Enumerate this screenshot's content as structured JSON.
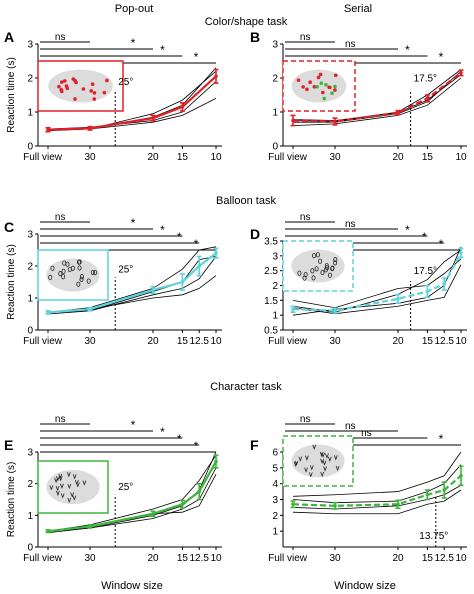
{
  "headers": {
    "col_left": "Pop-out",
    "col_right": "Serial",
    "row1": "Color/shape task",
    "row2": "Balloon task",
    "row3": "Character task"
  },
  "ylabel": "Reaction time (s)",
  "xlabel": "Window size",
  "colors": {
    "red": "#e32028",
    "cyan": "#5cd3dd",
    "green": "#3db53d",
    "ind": "#000000"
  },
  "chart_data": [
    {
      "panel": "A",
      "type": "line",
      "task": "Color/shape",
      "condition": "Pop-out",
      "x_tick_labels": [
        "Full view",
        "30",
        "20",
        "15",
        "10"
      ],
      "x_positions": [
        0,
        1,
        2.5,
        3.2,
        4
      ],
      "ylim": [
        0,
        3
      ],
      "y_ticks": [
        0,
        1,
        2,
        3
      ],
      "mean": [
        0.48,
        0.52,
        0.82,
        1.15,
        2.05
      ],
      "err": [
        0.06,
        0.05,
        0.08,
        0.12,
        0.2
      ],
      "individual": [
        [
          0.45,
          0.5,
          0.95,
          1.35,
          2.2
        ],
        [
          0.5,
          0.55,
          0.75,
          1.0,
          1.9
        ],
        [
          0.46,
          0.5,
          0.7,
          0.9,
          1.4
        ],
        [
          0.5,
          0.52,
          0.85,
          1.2,
          2.3
        ]
      ],
      "dashed": false,
      "color_key": "red",
      "icon": "dots",
      "threshold": {
        "label": "25°",
        "x": 1.6
      },
      "sig_bars": [
        {
          "label": "ns",
          "end": 1
        },
        {
          "label": "*",
          "end": 2.5
        },
        {
          "label": "*",
          "end": 3.2
        },
        {
          "label": "*",
          "end": 4
        }
      ]
    },
    {
      "panel": "B",
      "type": "line",
      "task": "Color/shape",
      "condition": "Serial",
      "x_tick_labels": [
        "Full view",
        "30",
        "20",
        "15",
        "10"
      ],
      "x_positions": [
        0,
        1,
        2.5,
        3.2,
        4
      ],
      "ylim": [
        0,
        3
      ],
      "y_ticks": [
        0,
        1,
        2,
        3
      ],
      "mean": [
        0.75,
        0.72,
        0.98,
        1.4,
        2.15
      ],
      "err": [
        0.15,
        0.1,
        0.06,
        0.1,
        0.08
      ],
      "individual": [
        [
          0.7,
          0.7,
          0.95,
          1.3,
          2.2
        ],
        [
          0.75,
          0.72,
          1.0,
          1.5,
          2.25
        ],
        [
          0.78,
          0.75,
          0.98,
          1.35,
          2.1
        ],
        [
          0.6,
          0.65,
          0.9,
          1.2,
          2.0
        ]
      ],
      "dashed": true,
      "color_key": "red",
      "icon": "dots_mixed",
      "threshold": {
        "label": "17.5°",
        "x": 2.8
      },
      "sig_bars": [
        {
          "label": "ns",
          "end": 1
        },
        {
          "label": "ns",
          "end": 2.5
        },
        {
          "label": "*",
          "end": 3.2
        },
        {
          "label": "*",
          "end": 4
        }
      ]
    },
    {
      "panel": "C",
      "type": "line",
      "task": "Balloon",
      "condition": "Pop-out",
      "x_tick_labels": [
        "Full view",
        "30",
        "20",
        "15",
        "12.5",
        "10"
      ],
      "x_positions": [
        0,
        1,
        2.5,
        3.2,
        3.6,
        4
      ],
      "ylim": [
        0,
        3
      ],
      "y_ticks": [
        0,
        1,
        2,
        3
      ],
      "mean": [
        0.55,
        0.65,
        1.25,
        1.5,
        2.0,
        2.4
      ],
      "err": [
        0.05,
        0.05,
        0.1,
        0.25,
        0.3,
        0.15
      ],
      "individual": [
        [
          0.55,
          0.7,
          1.3,
          1.9,
          2.5,
          2.6
        ],
        [
          0.55,
          0.6,
          1.1,
          1.3,
          1.6,
          2.3
        ],
        [
          0.5,
          0.6,
          1.2,
          1.5,
          2.2,
          2.3
        ],
        [
          0.55,
          0.65,
          1.0,
          1.1,
          1.3,
          1.7
        ]
      ],
      "dashed": false,
      "color_key": "cyan",
      "icon": "balloons",
      "threshold": {
        "label": "25°",
        "x": 1.6
      },
      "sig_bars": [
        {
          "label": "ns",
          "end": 1
        },
        {
          "label": "*",
          "end": 2.5
        },
        {
          "label": "*",
          "end": 3.2
        },
        {
          "label": "*",
          "end": 3.6
        },
        {
          "label": "*",
          "end": 4
        }
      ]
    },
    {
      "panel": "D",
      "type": "line",
      "task": "Balloon",
      "condition": "Serial",
      "x_tick_labels": [
        "Full view",
        "30",
        "20",
        "15",
        "12.5",
        "10"
      ],
      "x_positions": [
        0,
        1,
        2.5,
        3.2,
        3.6,
        4
      ],
      "ylim": [
        0.5,
        3.5
      ],
      "y_ticks": [
        0.5,
        1,
        1.5,
        2,
        2.5,
        3,
        3.5
      ],
      "mean": [
        1.2,
        1.15,
        1.55,
        1.8,
        2.05,
        3.1
      ],
      "err": [
        0.1,
        0.08,
        0.15,
        0.2,
        0.2,
        0.15
      ],
      "individual": [
        [
          1.3,
          1.1,
          1.7,
          2.2,
          2.8,
          3.2
        ],
        [
          1.0,
          1.2,
          1.4,
          1.6,
          2.0,
          3.3
        ],
        [
          1.25,
          1.05,
          1.3,
          1.5,
          1.6,
          2.7
        ],
        [
          1.5,
          1.25,
          1.9,
          2.0,
          2.4,
          2.9
        ]
      ],
      "dashed": true,
      "color_key": "cyan",
      "icon": "balloons",
      "threshold": {
        "label": "17.5°",
        "x": 2.8
      },
      "sig_bars": [
        {
          "label": "ns",
          "end": 1
        },
        {
          "label": "ns",
          "end": 2.5
        },
        {
          "label": "*",
          "end": 3.2
        },
        {
          "label": "*",
          "end": 3.6
        },
        {
          "label": "*",
          "end": 4
        }
      ]
    },
    {
      "panel": "E",
      "type": "line",
      "task": "Character",
      "condition": "Pop-out",
      "x_tick_labels": [
        "Full view",
        "30",
        "20",
        "15",
        "12.5",
        "10"
      ],
      "x_positions": [
        0,
        1,
        2.5,
        3.2,
        3.6,
        4
      ],
      "ylim": [
        0,
        3
      ],
      "y_ticks": [
        0,
        1,
        2,
        3
      ],
      "mean": [
        0.5,
        0.65,
        1.05,
        1.35,
        1.75,
        2.7
      ],
      "err": [
        0.04,
        0.05,
        0.08,
        0.12,
        0.25,
        0.2
      ],
      "individual": [
        [
          0.5,
          0.7,
          1.2,
          1.5,
          2.1,
          2.9
        ],
        [
          0.5,
          0.6,
          0.9,
          1.2,
          1.5,
          2.5
        ],
        [
          0.45,
          0.6,
          1.0,
          1.3,
          1.8,
          3.0
        ],
        [
          0.5,
          0.65,
          1.05,
          1.1,
          1.3,
          2.3
        ]
      ],
      "dashed": false,
      "color_key": "green",
      "icon": "characters",
      "threshold": {
        "label": "25°",
        "x": 1.6
      },
      "sig_bars": [
        {
          "label": "ns",
          "end": 1
        },
        {
          "label": "*",
          "end": 2.5
        },
        {
          "label": "*",
          "end": 3.2
        },
        {
          "label": "*",
          "end": 3.6
        },
        {
          "label": "*",
          "end": 4
        }
      ]
    },
    {
      "panel": "F",
      "type": "line",
      "task": "Character",
      "condition": "Serial",
      "x_tick_labels": [
        "Full view",
        "30",
        "20",
        "15",
        "12.5",
        "10"
      ],
      "x_positions": [
        0,
        1,
        2.5,
        3.2,
        3.6,
        4
      ],
      "ylim": [
        0,
        6
      ],
      "y_ticks": [
        1,
        2,
        3,
        4,
        5,
        6
      ],
      "mean": [
        2.7,
        2.6,
        2.7,
        3.3,
        3.6,
        4.5
      ],
      "err": [
        0.2,
        0.2,
        0.25,
        0.3,
        0.5,
        0.6
      ],
      "individual": [
        [
          3.2,
          3.3,
          3.5,
          4.1,
          4.5,
          6.0
        ],
        [
          2.2,
          2.1,
          2.1,
          2.7,
          2.9,
          3.6
        ],
        [
          3.0,
          2.8,
          2.9,
          3.5,
          4.0,
          5.2
        ],
        [
          2.5,
          2.4,
          2.6,
          3.0,
          3.3,
          3.9
        ]
      ],
      "dashed": true,
      "color_key": "green",
      "icon": "characters",
      "threshold": {
        "label": "13.75°",
        "x": 3.4
      },
      "sig_bars": [
        {
          "label": "ns",
          "end": 1
        },
        {
          "label": "ns",
          "end": 2.5
        },
        {
          "label": "ns",
          "end": 3.2
        },
        {
          "label": "*",
          "end": 4
        }
      ]
    }
  ]
}
